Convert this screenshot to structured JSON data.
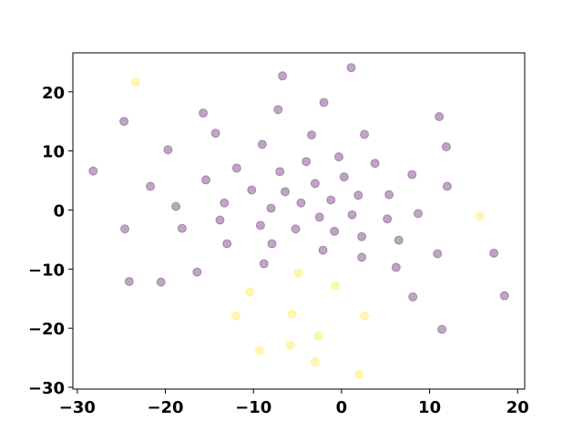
{
  "chart_data": {
    "type": "scatter",
    "xlim": [
      -30.5,
      20.8
    ],
    "ylim": [
      -30.3,
      26.6
    ],
    "xticks": [
      {
        "value": -30,
        "label": "−30"
      },
      {
        "value": -20,
        "label": "−20"
      },
      {
        "value": -10,
        "label": "−10"
      },
      0,
      10,
      20
    ],
    "yticks": [
      {
        "value": -30,
        "label": "−30"
      },
      {
        "value": -20,
        "label": "−20"
      },
      {
        "value": -10,
        "label": "−10"
      },
      0,
      10,
      20
    ],
    "alpha": 0.35,
    "series": [
      {
        "color": "#440154",
        "x": [
          -28.2,
          -24.7,
          -24.6,
          -24.1,
          -21.7,
          -20.5,
          -19.7,
          -18.8,
          -18.1,
          -16.4,
          -15.7,
          -15.4,
          -14.3,
          -13.8,
          -13.3,
          -13.0,
          -11.9,
          -10.2,
          -9.2,
          -9.0,
          -8.8,
          -8.0,
          -7.9,
          -7.2,
          -7.0,
          -6.7,
          -6.4,
          -5.2,
          -4.6,
          -4.0,
          -3.4,
          -3.0,
          -2.5,
          -2.1,
          -2.0,
          -1.2,
          -0.8,
          -0.3,
          0.3,
          1.1,
          1.2,
          1.9,
          2.3,
          2.3,
          2.6,
          3.8,
          5.2,
          5.4,
          6.5,
          6.2,
          8.0,
          8.1,
          8.7,
          10.9,
          11.1,
          11.4,
          11.9,
          12.0,
          17.3,
          18.5
        ],
        "values": [
          6.6,
          15.0,
          -3.2,
          -12.1,
          4.0,
          -12.2,
          10.2,
          0.6,
          -3.1,
          -10.5,
          16.4,
          5.1,
          13.0,
          -1.7,
          1.2,
          -5.7,
          7.1,
          3.4,
          -2.6,
          11.1,
          -9.1,
          0.3,
          -5.7,
          17.0,
          6.5,
          22.7,
          3.1,
          -3.2,
          1.2,
          8.2,
          12.7,
          4.5,
          -1.2,
          -6.8,
          18.2,
          1.7,
          -3.6,
          9.0,
          5.6,
          24.1,
          -0.8,
          2.5,
          -4.5,
          -8.0,
          12.8,
          7.9,
          -1.5,
          2.6,
          -5.1,
          -9.7,
          6.0,
          -14.7,
          -0.6,
          -7.4,
          15.8,
          -20.2,
          10.7,
          4.0,
          -7.3,
          -14.5
        ]
      },
      {
        "color": "#fde725",
        "x": [
          -23.4,
          -12.0,
          -10.4,
          -9.3,
          -5.8,
          -5.6,
          -4.9,
          -2.6,
          -3.0,
          -0.7,
          2.0,
          2.6,
          15.7
        ],
        "values": [
          21.6,
          -17.9,
          -13.9,
          -23.8,
          -22.9,
          -17.6,
          -10.7,
          -21.3,
          -25.7,
          -12.8,
          -27.8,
          -17.9,
          -1.1
        ]
      }
    ]
  }
}
